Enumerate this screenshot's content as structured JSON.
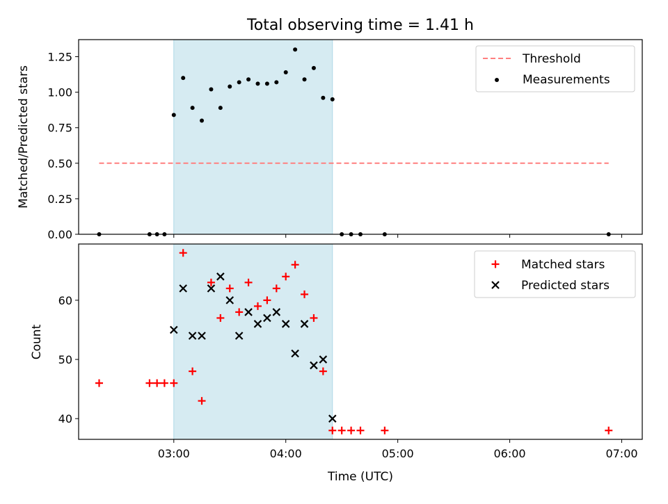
{
  "chart_data": {
    "title": "Total observing time = 1.41 h",
    "xlabel": "Time (UTC)",
    "xlim": [
      "02:09",
      "07:11"
    ],
    "x_ticks": [
      "03:00",
      "04:00",
      "05:00",
      "06:00",
      "07:00"
    ],
    "highlight_span": {
      "start": "03:00",
      "end": "04:25",
      "color": "#add8e6"
    },
    "panels": [
      {
        "type": "scatter",
        "ylabel": "Matched/Predicted stars",
        "ylim": [
          0,
          1.37
        ],
        "y_ticks": [
          "0.00",
          "0.25",
          "0.50",
          "0.75",
          "1.00",
          "1.25"
        ],
        "legend_position": "top-right",
        "threshold": {
          "name": "Threshold",
          "value": 0.5,
          "x_start": "02:20",
          "x_end": "06:53",
          "color": "#ff7f7f"
        },
        "series": [
          {
            "name": "Measurements",
            "color": "#000000",
            "points": [
              [
                "02:20",
                0
              ],
              [
                "02:47",
                0
              ],
              [
                "02:51",
                0
              ],
              [
                "02:55",
                0
              ],
              [
                "03:00",
                0.84
              ],
              [
                "03:05",
                1.1
              ],
              [
                "03:10",
                0.89
              ],
              [
                "03:15",
                0.8
              ],
              [
                "03:20",
                1.02
              ],
              [
                "03:25",
                0.89
              ],
              [
                "03:30",
                1.04
              ],
              [
                "03:35",
                1.07
              ],
              [
                "03:40",
                1.09
              ],
              [
                "03:45",
                1.06
              ],
              [
                "03:50",
                1.06
              ],
              [
                "03:55",
                1.07
              ],
              [
                "04:00",
                1.14
              ],
              [
                "04:05",
                1.3
              ],
              [
                "04:10",
                1.09
              ],
              [
                "04:15",
                1.17
              ],
              [
                "04:20",
                0.96
              ],
              [
                "04:25",
                0.95
              ],
              [
                "04:30",
                0
              ],
              [
                "04:35",
                0
              ],
              [
                "04:40",
                0
              ],
              [
                "04:53",
                0
              ],
              [
                "06:53",
                0
              ]
            ]
          }
        ]
      },
      {
        "type": "scatter",
        "ylabel": "Count",
        "ylim": [
          36.5,
          69.5
        ],
        "y_ticks": [
          "40",
          "50",
          "60"
        ],
        "legend_position": "top-right",
        "series": [
          {
            "name": "Matched stars",
            "color": "#ff0000",
            "marker": "+",
            "points": [
              [
                "02:20",
                46
              ],
              [
                "02:47",
                46
              ],
              [
                "02:51",
                46
              ],
              [
                "02:55",
                46
              ],
              [
                "03:00",
                46
              ],
              [
                "03:05",
                68
              ],
              [
                "03:10",
                48
              ],
              [
                "03:15",
                43
              ],
              [
                "03:20",
                63
              ],
              [
                "03:25",
                57
              ],
              [
                "03:30",
                62
              ],
              [
                "03:35",
                58
              ],
              [
                "03:40",
                63
              ],
              [
                "03:45",
                59
              ],
              [
                "03:50",
                60
              ],
              [
                "03:55",
                62
              ],
              [
                "04:00",
                64
              ],
              [
                "04:05",
                66
              ],
              [
                "04:10",
                61
              ],
              [
                "04:15",
                57
              ],
              [
                "04:20",
                48
              ],
              [
                "04:25",
                38
              ],
              [
                "04:30",
                38
              ],
              [
                "04:35",
                38
              ],
              [
                "04:40",
                38
              ],
              [
                "04:53",
                38
              ],
              [
                "06:53",
                38
              ]
            ]
          },
          {
            "name": "Predicted stars",
            "color": "#000000",
            "marker": "x",
            "points": [
              [
                "03:00",
                55
              ],
              [
                "03:05",
                62
              ],
              [
                "03:10",
                54
              ],
              [
                "03:15",
                54
              ],
              [
                "03:20",
                62
              ],
              [
                "03:25",
                64
              ],
              [
                "03:30",
                60
              ],
              [
                "03:35",
                54
              ],
              [
                "03:40",
                58
              ],
              [
                "03:45",
                56
              ],
              [
                "03:50",
                57
              ],
              [
                "03:55",
                58
              ],
              [
                "04:00",
                56
              ],
              [
                "04:05",
                51
              ],
              [
                "04:10",
                56
              ],
              [
                "04:15",
                49
              ],
              [
                "04:20",
                50
              ],
              [
                "04:25",
                40
              ]
            ]
          }
        ]
      }
    ]
  }
}
